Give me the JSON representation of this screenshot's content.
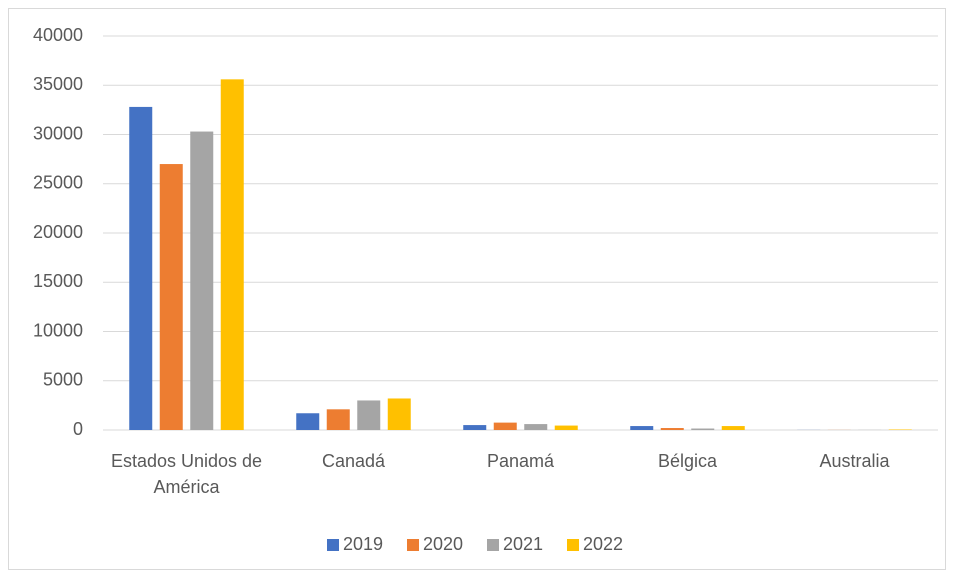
{
  "chart_data": {
    "type": "bar",
    "categories": [
      "Estados Unidos de América",
      "Canadá",
      "Panamá",
      "Bélgica",
      "Australia"
    ],
    "series": [
      {
        "name": "2019",
        "color": "#4472c4",
        "values": [
          32800,
          1700,
          500,
          400,
          10
        ]
      },
      {
        "name": "2020",
        "color": "#ed7d31",
        "values": [
          27000,
          2100,
          750,
          200,
          10
        ]
      },
      {
        "name": "2021",
        "color": "#a5a5a5",
        "values": [
          30300,
          3000,
          600,
          150,
          10
        ]
      },
      {
        "name": "2022",
        "color": "#ffc000",
        "values": [
          35600,
          3200,
          450,
          400,
          50
        ]
      }
    ],
    "ylim": [
      0,
      40000
    ],
    "yticks": [
      0,
      5000,
      10000,
      15000,
      20000,
      25000,
      30000,
      35000,
      40000
    ],
    "grid": true,
    "legend": "bottom"
  }
}
